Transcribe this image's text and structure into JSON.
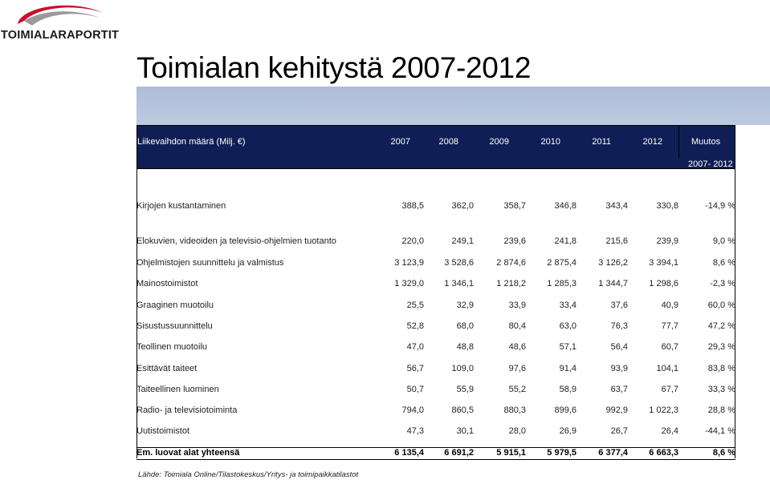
{
  "logo": {
    "text": "TOIMIALARAPORTIT"
  },
  "title": "Toimialan kehitystä 2007-2012",
  "table": {
    "header_label": "Liikevaihdon määrä (Milj. €)",
    "years": [
      "2007",
      "2008",
      "2009",
      "2010",
      "2011",
      "2012"
    ],
    "change_label": "Muutos",
    "change_sub": "2007- 2012",
    "rows": [
      {
        "label": "Kirjojen kustantaminen",
        "values": [
          "388,5",
          "362,0",
          "358,7",
          "346,8",
          "343,4",
          "330,8"
        ],
        "change": "-14,9 %"
      },
      {
        "label": "Elokuvien, videoiden ja televisio-ohjelmien tuotanto",
        "values": [
          "220,0",
          "249,1",
          "239,6",
          "241,8",
          "215,6",
          "239,9"
        ],
        "change": "9,0 %"
      },
      {
        "label": "Ohjelmistojen suunnittelu ja valmistus",
        "values": [
          "3 123,9",
          "3 528,6",
          "2 874,6",
          "2 875,4",
          "3 126,2",
          "3 394,1"
        ],
        "change": "8,6 %"
      },
      {
        "label": "Mainostoimistot",
        "values": [
          "1 329,0",
          "1 346,1",
          "1 218,2",
          "1 285,3",
          "1 344,7",
          "1 298,6"
        ],
        "change": "-2,3 %"
      },
      {
        "label": "Graaginen muotoilu",
        "values": [
          "25,5",
          "32,9",
          "33,9",
          "33,4",
          "37,6",
          "40,9"
        ],
        "change": "60,0 %"
      },
      {
        "label": "Sisustussuunnittelu",
        "values": [
          "52,8",
          "68,0",
          "80,4",
          "63,0",
          "76,3",
          "77,7"
        ],
        "change": "47,2 %"
      },
      {
        "label": "Teollinen muotoilu",
        "values": [
          "47,0",
          "48,8",
          "48,6",
          "57,1",
          "56,4",
          "60,7"
        ],
        "change": "29,3 %"
      },
      {
        "label": "Esittävät taiteet",
        "values": [
          "56,7",
          "109,0",
          "97,6",
          "91,4",
          "93,9",
          "104,1"
        ],
        "change": "83,8 %"
      },
      {
        "label": "Taiteellinen luominen",
        "values": [
          "50,7",
          "55,9",
          "55,2",
          "58,9",
          "63,7",
          "67,7"
        ],
        "change": "33,3 %"
      },
      {
        "label": "Radio- ja televisiotoiminta",
        "values": [
          "794,0",
          "860,5",
          "880,3",
          "899,6",
          "992,9",
          "1 022,3"
        ],
        "change": "28,8 %"
      },
      {
        "label": "Uutistoimistot",
        "values": [
          "47,3",
          "30,1",
          "28,0",
          "26,9",
          "26,7",
          "26,4"
        ],
        "change": "-44,1 %"
      }
    ],
    "total": {
      "label": "Em. luovat alat yhteensä",
      "values": [
        "6 135,4",
        "6 691,2",
        "5 915,1",
        "5 979,5",
        "6 377,4",
        "6 663,3"
      ],
      "change": "8,6 %"
    }
  },
  "source": "Lähde: Toimiala Online/Tilastokeskus/Yritys- ja toimipaikkatilastot",
  "colors": {
    "header_bg": "#0f1f55",
    "band_bg": "#b4c3dd",
    "logo_red": "#c8102e",
    "logo_gray": "#7a7a7a"
  }
}
